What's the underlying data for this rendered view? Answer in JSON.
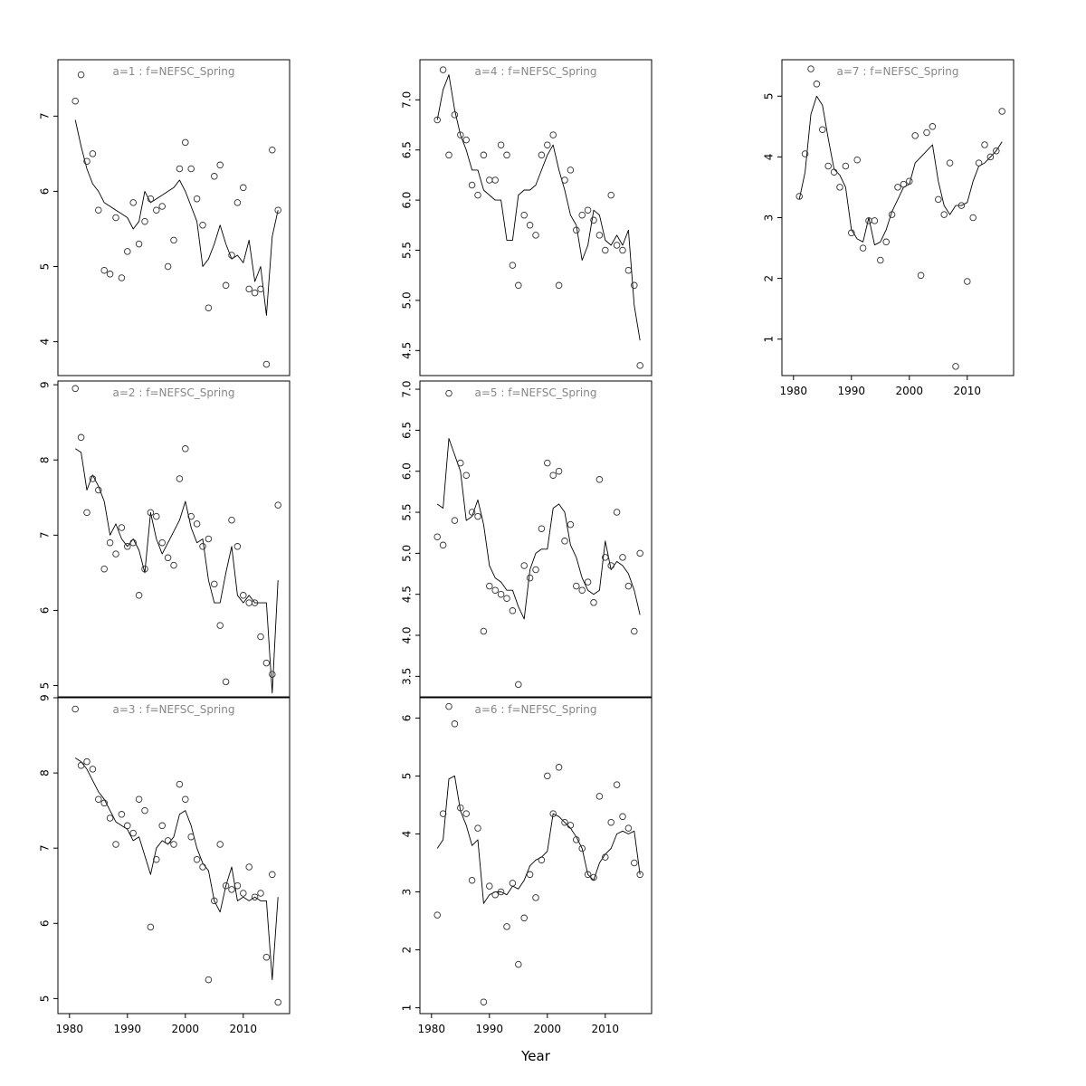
{
  "figure": {
    "xlabel": "Year",
    "x_ticks": [
      1980,
      1990,
      2000,
      2010
    ],
    "years": [
      1981,
      1982,
      1983,
      1984,
      1985,
      1986,
      1987,
      1988,
      1989,
      1990,
      1991,
      1992,
      1993,
      1994,
      1995,
      1996,
      1997,
      1998,
      1999,
      2000,
      2001,
      2002,
      2003,
      2004,
      2005,
      2006,
      2007,
      2008,
      2009,
      2010,
      2011,
      2012,
      2013,
      2014,
      2015,
      2016
    ],
    "line_color": "#000000",
    "point_color": "#303030",
    "title_color": "#878787",
    "background": "#ffffff"
  },
  "chart_data": [
    {
      "type": "scatter",
      "title": "a=1  :  f=NEFSC_Spring",
      "xlim": [
        1978,
        2018
      ],
      "ylim": [
        3.55,
        7.75
      ],
      "yticks": [
        4,
        5,
        6,
        7
      ],
      "ytick_labels": [
        "4",
        "5",
        "6",
        "7"
      ],
      "show_x_labels": false,
      "obs_values": [
        7.2,
        7.55,
        6.4,
        6.5,
        5.75,
        4.95,
        4.9,
        5.65,
        4.85,
        5.2,
        5.85,
        5.3,
        5.6,
        5.9,
        5.75,
        5.8,
        5.0,
        5.35,
        6.3,
        6.65,
        6.3,
        5.9,
        5.55,
        4.45,
        6.2,
        6.35,
        4.75,
        5.15,
        5.85,
        6.05,
        4.7,
        4.65,
        4.7,
        3.7,
        6.55,
        5.75
      ],
      "fit_values": [
        6.95,
        6.6,
        6.3,
        6.1,
        6.0,
        5.85,
        5.8,
        5.75,
        5.7,
        5.65,
        5.5,
        5.6,
        6.0,
        5.85,
        5.9,
        5.95,
        6.0,
        6.05,
        6.15,
        6.0,
        5.8,
        5.6,
        5.0,
        5.1,
        5.3,
        5.55,
        5.3,
        5.1,
        5.15,
        5.05,
        5.35,
        4.8,
        5.0,
        4.35,
        5.4,
        5.75
      ]
    },
    {
      "type": "scatter",
      "title": "a=2  :  f=NEFSC_Spring",
      "xlim": [
        1978,
        2018
      ],
      "ylim": [
        4.85,
        9.05
      ],
      "yticks": [
        5,
        6,
        7,
        8,
        9
      ],
      "ytick_labels": [
        "5",
        "6",
        "7",
        "8",
        "9"
      ],
      "show_x_labels": false,
      "obs_values": [
        8.95,
        8.3,
        7.3,
        7.75,
        7.6,
        6.55,
        6.9,
        6.75,
        7.1,
        6.85,
        6.9,
        6.2,
        6.55,
        7.3,
        7.25,
        6.9,
        6.7,
        6.6,
        7.75,
        8.15,
        7.25,
        7.15,
        6.85,
        6.95,
        6.35,
        5.8,
        5.05,
        7.2,
        6.85,
        6.2,
        6.1,
        6.1,
        5.65,
        5.3,
        5.15,
        7.4
      ],
      "fit_values": [
        8.15,
        8.1,
        7.6,
        7.8,
        7.65,
        7.45,
        7.0,
        7.15,
        6.95,
        6.85,
        6.95,
        6.8,
        6.5,
        7.3,
        6.95,
        6.75,
        6.9,
        7.05,
        7.2,
        7.45,
        7.1,
        6.9,
        6.95,
        6.4,
        6.1,
        6.1,
        6.5,
        6.85,
        6.2,
        6.1,
        6.2,
        6.1,
        6.1,
        6.1,
        4.9,
        6.4
      ]
    },
    {
      "type": "scatter",
      "title": "a=3  :  f=NEFSC_Spring",
      "xlim": [
        1978,
        2018
      ],
      "ylim": [
        4.8,
        9.0
      ],
      "yticks": [
        5,
        6,
        7,
        8,
        9
      ],
      "ytick_labels": [
        "5",
        "6",
        "7",
        "8",
        "9"
      ],
      "show_x_labels": true,
      "obs_values": [
        8.85,
        8.1,
        8.15,
        8.05,
        7.65,
        7.6,
        7.4,
        7.05,
        7.45,
        7.3,
        7.2,
        7.65,
        7.5,
        5.95,
        6.85,
        7.3,
        7.1,
        7.05,
        7.85,
        7.65,
        7.15,
        6.85,
        6.75,
        5.25,
        6.3,
        7.05,
        6.5,
        6.45,
        6.5,
        6.4,
        6.75,
        6.35,
        6.4,
        5.55,
        6.65,
        4.95
      ],
      "fit_values": [
        8.2,
        8.15,
        8.05,
        7.9,
        7.75,
        7.65,
        7.5,
        7.35,
        7.3,
        7.25,
        7.1,
        7.15,
        6.9,
        6.65,
        7.0,
        7.1,
        7.05,
        7.15,
        7.45,
        7.5,
        7.3,
        7.0,
        6.8,
        6.7,
        6.3,
        6.15,
        6.5,
        6.75,
        6.3,
        6.35,
        6.3,
        6.35,
        6.3,
        6.3,
        5.25,
        6.35
      ]
    },
    {
      "type": "scatter",
      "title": "a=4  :  f=NEFSC_Spring",
      "xlim": [
        1978,
        2018
      ],
      "ylim": [
        4.25,
        7.4
      ],
      "yticks": [
        4.5,
        5.0,
        5.5,
        6.0,
        6.5,
        7.0
      ],
      "ytick_labels": [
        "4.5",
        "5.0",
        "5.5",
        "6.0",
        "6.5",
        "7.0"
      ],
      "show_x_labels": false,
      "obs_values": [
        6.8,
        7.3,
        6.45,
        6.85,
        6.65,
        6.6,
        6.15,
        6.05,
        6.45,
        6.2,
        6.2,
        6.55,
        6.45,
        5.35,
        5.15,
        5.85,
        5.75,
        5.65,
        6.45,
        6.55,
        6.65,
        5.15,
        6.2,
        6.3,
        5.7,
        5.85,
        5.9,
        5.8,
        5.65,
        5.5,
        6.05,
        5.55,
        5.5,
        5.3,
        5.15,
        4.35
      ],
      "fit_values": [
        6.8,
        7.1,
        7.25,
        6.9,
        6.65,
        6.5,
        6.3,
        6.3,
        6.1,
        6.05,
        6.0,
        6.0,
        5.6,
        5.6,
        6.05,
        6.1,
        6.1,
        6.15,
        6.3,
        6.45,
        6.55,
        6.3,
        6.1,
        5.85,
        5.75,
        5.4,
        5.55,
        5.9,
        5.85,
        5.6,
        5.55,
        5.65,
        5.55,
        5.7,
        4.95,
        4.6
      ]
    },
    {
      "type": "scatter",
      "title": "a=5  :  f=NEFSC_Spring",
      "xlim": [
        1978,
        2018
      ],
      "ylim": [
        3.25,
        7.1
      ],
      "yticks": [
        3.5,
        4.0,
        4.5,
        5.0,
        5.5,
        6.0,
        6.5,
        7.0
      ],
      "ytick_labels": [
        "3.5",
        "4.0",
        "4.5",
        "5.0",
        "5.5",
        "6.0",
        "6.5",
        "7.0"
      ],
      "show_x_labels": false,
      "obs_values": [
        5.2,
        5.1,
        6.95,
        5.4,
        6.1,
        5.95,
        5.5,
        5.45,
        4.05,
        4.6,
        4.55,
        4.5,
        4.45,
        4.3,
        3.4,
        4.85,
        4.7,
        4.8,
        5.3,
        6.1,
        5.95,
        6.0,
        5.15,
        5.35,
        4.6,
        4.55,
        4.65,
        4.4,
        5.9,
        4.95,
        4.85,
        5.5,
        4.95,
        4.6,
        4.05,
        5.0
      ],
      "fit_values": [
        5.6,
        5.55,
        6.4,
        6.2,
        6.0,
        5.4,
        5.45,
        5.65,
        5.35,
        4.85,
        4.7,
        4.65,
        4.55,
        4.55,
        4.35,
        4.2,
        4.8,
        5.0,
        5.05,
        5.05,
        5.55,
        5.6,
        5.5,
        5.1,
        4.95,
        4.7,
        4.55,
        4.5,
        4.55,
        5.15,
        4.8,
        4.9,
        4.85,
        4.75,
        4.55,
        4.25
      ]
    },
    {
      "type": "scatter",
      "title": "a=6  :  f=NEFSC_Spring",
      "xlim": [
        1978,
        2018
      ],
      "ylim": [
        0.9,
        6.35
      ],
      "yticks": [
        1,
        2,
        3,
        4,
        5,
        6
      ],
      "ytick_labels": [
        "1",
        "2",
        "3",
        "4",
        "5",
        "6"
      ],
      "show_x_labels": true,
      "obs_values": [
        2.6,
        4.35,
        6.2,
        5.9,
        4.45,
        4.35,
        3.2,
        4.1,
        1.1,
        3.1,
        2.95,
        3.0,
        2.4,
        3.15,
        1.75,
        2.55,
        3.3,
        2.9,
        3.55,
        5.0,
        4.35,
        5.15,
        4.2,
        4.15,
        3.9,
        3.75,
        3.3,
        3.25,
        4.65,
        3.6,
        4.2,
        4.85,
        4.3,
        4.1,
        3.5,
        3.3
      ],
      "fit_values": [
        3.75,
        3.9,
        4.95,
        5.0,
        4.4,
        4.15,
        3.8,
        3.9,
        2.8,
        2.95,
        3.0,
        3.0,
        2.95,
        3.1,
        3.05,
        3.2,
        3.45,
        3.55,
        3.6,
        3.7,
        4.35,
        4.3,
        4.2,
        4.1,
        3.95,
        3.75,
        3.3,
        3.2,
        3.5,
        3.65,
        3.75,
        4.0,
        4.05,
        4.0,
        4.05,
        3.3
      ]
    },
    {
      "type": "scatter",
      "title": "a=7  :  f=NEFSC_Spring",
      "xlim": [
        1978,
        2018
      ],
      "ylim": [
        0.4,
        5.6
      ],
      "yticks": [
        1,
        2,
        3,
        4,
        5
      ],
      "ytick_labels": [
        "1",
        "2",
        "3",
        "4",
        "5"
      ],
      "show_x_labels": true,
      "obs_values": [
        3.35,
        4.05,
        5.45,
        5.2,
        4.45,
        3.85,
        3.75,
        3.5,
        3.85,
        2.75,
        3.95,
        2.5,
        2.95,
        2.95,
        2.3,
        2.6,
        3.05,
        3.5,
        3.55,
        3.6,
        4.35,
        2.05,
        4.4,
        4.5,
        3.3,
        3.05,
        3.9,
        0.55,
        3.2,
        1.95,
        3.0,
        3.9,
        4.2,
        4.0,
        4.1,
        4.75
      ],
      "fit_values": [
        3.3,
        3.75,
        4.7,
        5.0,
        4.85,
        4.3,
        3.8,
        3.7,
        3.5,
        2.8,
        2.65,
        2.6,
        3.0,
        2.55,
        2.6,
        2.8,
        3.1,
        3.3,
        3.5,
        3.55,
        3.9,
        4.0,
        4.1,
        4.2,
        3.6,
        3.2,
        3.05,
        3.2,
        3.2,
        3.25,
        3.6,
        3.85,
        3.9,
        4.0,
        4.1,
        4.25
      ]
    }
  ]
}
